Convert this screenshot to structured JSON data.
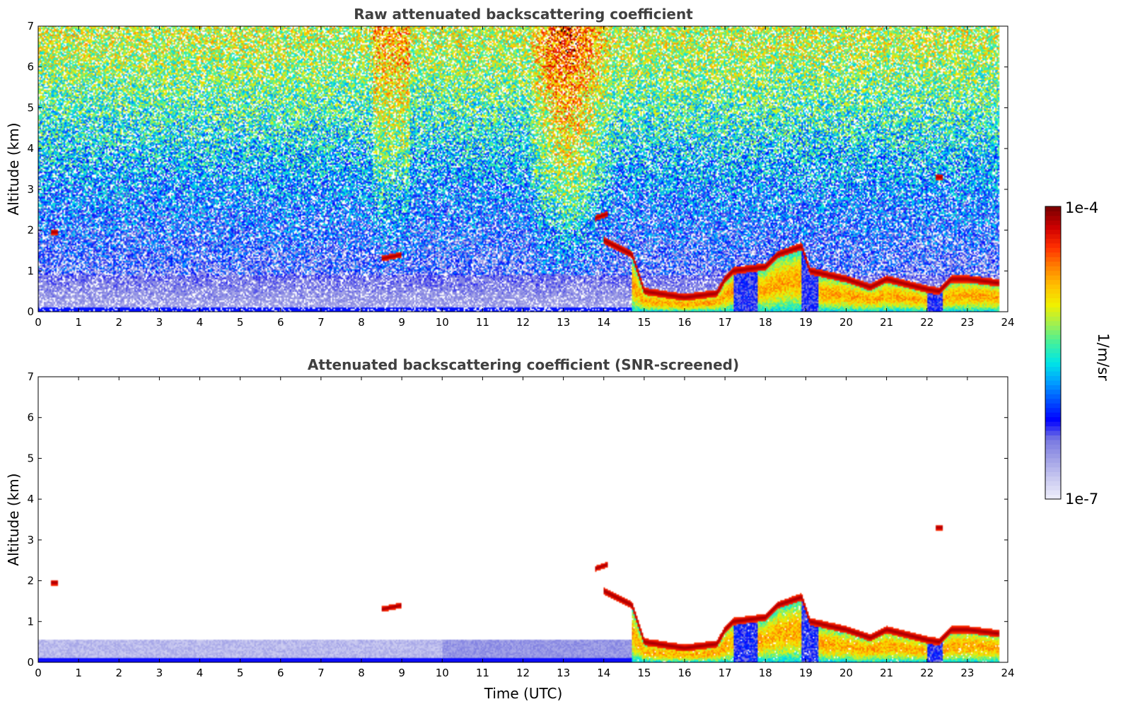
{
  "colors": {
    "colormap": [
      "#ebebfa",
      "#c8c8f0",
      "#a0a0e6",
      "#7878e1",
      "#0000ff",
      "#0050ff",
      "#00a0ff",
      "#00e6e6",
      "#40f0a0",
      "#a0f050",
      "#f0f000",
      "#ffc000",
      "#ff8000",
      "#ff3000",
      "#d00000",
      "#800000"
    ],
    "frame": "#000000",
    "title_text": "#404040"
  },
  "chart_data": [
    {
      "type": "heatmap",
      "title": "Raw attenuated backscattering coefficient",
      "xlabel": "",
      "ylabel": "Altitude (km)",
      "xlim": [
        0,
        24
      ],
      "ylim": [
        0,
        7
      ],
      "xticks": [
        "0",
        "1",
        "2",
        "3",
        "4",
        "5",
        "6",
        "7",
        "8",
        "9",
        "10",
        "11",
        "12",
        "13",
        "14",
        "15",
        "16",
        "17",
        "18",
        "19",
        "20",
        "21",
        "22",
        "23",
        "24"
      ],
      "yticks": [
        "0",
        "1",
        "2",
        "3",
        "4",
        "5",
        "6",
        "7"
      ],
      "data_end_time": 23.8,
      "cloud_layers": [
        {
          "t": [
            14.0,
            14.5,
            14.7,
            15.0,
            16.0,
            16.8,
            17.0,
            17.2,
            18.0,
            18.3,
            18.9,
            19.1,
            20.0,
            20.6,
            21.0,
            22.0,
            22.3,
            22.6,
            23.0,
            23.8
          ],
          "alt": [
            1.75,
            1.5,
            1.4,
            0.5,
            0.35,
            0.45,
            0.8,
            1.0,
            1.1,
            1.4,
            1.6,
            1.0,
            0.8,
            0.6,
            0.8,
            0.55,
            0.5,
            0.8,
            0.8,
            0.7
          ]
        },
        {
          "t": [
            8.5,
            9.0
          ],
          "alt": [
            1.3,
            1.4
          ]
        },
        {
          "t": [
            0.3,
            0.5
          ],
          "alt": [
            1.95,
            1.95
          ]
        },
        {
          "t": [
            22.2,
            22.4
          ],
          "alt": [
            3.3,
            3.3
          ]
        },
        {
          "t": [
            13.8,
            14.1
          ],
          "alt": [
            2.3,
            2.4
          ]
        }
      ]
    },
    {
      "type": "heatmap",
      "title": "Attenuated backscattering coefficient (SNR-screened)",
      "xlabel": "Time (UTC)",
      "ylabel": "Altitude (km)",
      "xlim": [
        0,
        24
      ],
      "ylim": [
        0,
        7
      ],
      "xticks": [
        "0",
        "1",
        "2",
        "3",
        "4",
        "5",
        "6",
        "7",
        "8",
        "9",
        "10",
        "11",
        "12",
        "13",
        "14",
        "15",
        "16",
        "17",
        "18",
        "19",
        "20",
        "21",
        "22",
        "23",
        "24"
      ],
      "yticks": [
        "0",
        "1",
        "2",
        "3",
        "4",
        "5",
        "6",
        "7"
      ],
      "data_end_time": 23.8,
      "cloud_layers": [
        {
          "t": [
            14.0,
            14.5,
            14.7,
            15.0,
            16.0,
            16.8,
            17.0,
            17.2,
            18.0,
            18.3,
            18.9,
            19.1,
            20.0,
            20.6,
            21.0,
            22.0,
            22.3,
            22.6,
            23.0,
            23.8
          ],
          "alt": [
            1.75,
            1.5,
            1.4,
            0.5,
            0.35,
            0.45,
            0.8,
            1.0,
            1.1,
            1.4,
            1.6,
            1.0,
            0.8,
            0.6,
            0.8,
            0.55,
            0.5,
            0.8,
            0.8,
            0.7
          ]
        },
        {
          "t": [
            8.5,
            9.0
          ],
          "alt": [
            1.3,
            1.4
          ]
        },
        {
          "t": [
            0.3,
            0.5
          ],
          "alt": [
            1.95,
            1.95
          ]
        },
        {
          "t": [
            22.2,
            22.4
          ],
          "alt": [
            3.3,
            3.3
          ]
        },
        {
          "t": [
            13.8,
            14.1
          ],
          "alt": [
            2.3,
            2.4
          ]
        }
      ]
    }
  ],
  "colorbar": {
    "label": "1/m/sr",
    "max_label": "1e-4",
    "min_label": "1e-7",
    "range": [
      1e-07,
      0.0001
    ],
    "scale": "log"
  }
}
